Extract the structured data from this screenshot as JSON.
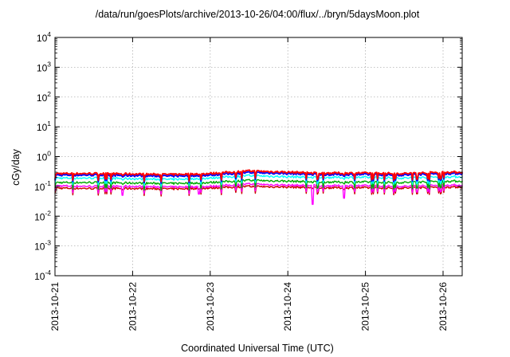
{
  "chart_data": {
    "type": "line",
    "title": "/data/run/goesPlots/archive/2013-10-26/04:00/flux/../bryn/5daysMoon.plot",
    "xlabel": "Coordinated Universal Time (UTC)",
    "ylabel": "cGy/day",
    "yscale": "log",
    "ylim": [
      0.0001,
      10000
    ],
    "xlim": [
      "2013-10-21",
      "2013-10-26 06:00"
    ],
    "grid": true,
    "x_ticks": [
      "2013-10-21",
      "2013-10-22",
      "2013-10-23",
      "2013-10-24",
      "2013-10-25",
      "2013-10-26"
    ],
    "y_ticks": [
      {
        "value": 0.0001,
        "base": "10",
        "exp": "-4"
      },
      {
        "value": 0.001,
        "base": "10",
        "exp": "-3"
      },
      {
        "value": 0.01,
        "base": "10",
        "exp": "-2"
      },
      {
        "value": 0.1,
        "base": "10",
        "exp": "-1"
      },
      {
        "value": 1,
        "base": "10",
        "exp": "0"
      },
      {
        "value": 10,
        "base": "10",
        "exp": "1"
      },
      {
        "value": 100,
        "base": "10",
        "exp": "2"
      },
      {
        "value": 1000,
        "base": "10",
        "exp": "3"
      },
      {
        "value": 10000,
        "base": "10",
        "exp": "4"
      }
    ],
    "x_day_values": [
      0,
      0.5,
      1,
      1.5,
      2,
      2.5,
      3,
      3.5,
      4,
      4.5,
      5,
      5.25
    ],
    "series": [
      {
        "color": "#ff0000",
        "values": [
          0.27,
          0.27,
          0.26,
          0.25,
          0.27,
          0.33,
          0.3,
          0.28,
          0.28,
          0.27,
          0.3,
          0.3
        ]
      },
      {
        "color": "#0000ff",
        "values": [
          0.24,
          0.24,
          0.23,
          0.22,
          0.24,
          0.29,
          0.27,
          0.25,
          0.25,
          0.24,
          0.27,
          0.27
        ]
      },
      {
        "color": "#00ffff",
        "values": [
          0.19,
          0.19,
          0.18,
          0.17,
          0.19,
          0.23,
          0.21,
          0.2,
          0.2,
          0.19,
          0.21,
          0.21
        ]
      },
      {
        "color": "#00aa00",
        "values": [
          0.135,
          0.135,
          0.13,
          0.125,
          0.135,
          0.16,
          0.15,
          0.14,
          0.14,
          0.135,
          0.15,
          0.15
        ]
      },
      {
        "color": "#ff00ff",
        "values": [
          0.105,
          0.1,
          0.1,
          0.095,
          0.1,
          0.12,
          0.11,
          0.105,
          0.105,
          0.1,
          0.11,
          0.11
        ]
      },
      {
        "color": "#cc0000",
        "values": [
          0.088,
          0.085,
          0.085,
          0.082,
          0.088,
          0.1,
          0.095,
          0.09,
          0.09,
          0.088,
          0.095,
          0.095
        ]
      }
    ],
    "dips": [
      {
        "day": 0.87,
        "value": 0.05
      },
      {
        "day": 1.85,
        "value": 0.055
      },
      {
        "day": 3.32,
        "value": 0.025
      },
      {
        "day": 3.72,
        "value": 0.04
      }
    ]
  }
}
